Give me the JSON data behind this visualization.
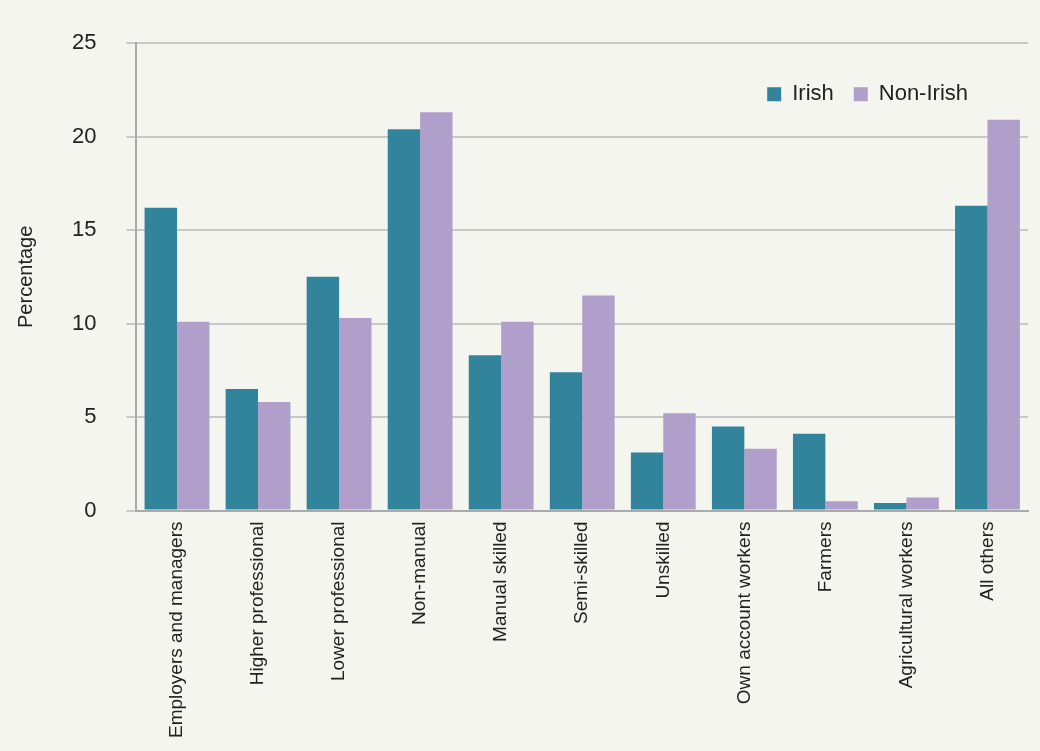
{
  "chart_data": {
    "type": "bar",
    "ylabel": "Percentage",
    "categories": [
      "Employers and managers",
      "Higher professional",
      "Lower professional",
      "Non-manual",
      "Manual skilled",
      "Semi-skilled",
      "Unskilled",
      "Own account workers",
      "Farmers",
      "Agricultural workers",
      "All others"
    ],
    "series": [
      {
        "name": "Irish",
        "color": "#31849b",
        "values": [
          16.2,
          6.5,
          12.5,
          20.4,
          8.3,
          7.4,
          3.1,
          4.5,
          4.1,
          0.4,
          16.3
        ]
      },
      {
        "name": "Non-Irish",
        "color": "#b09fca",
        "values": [
          10.1,
          5.8,
          10.3,
          21.3,
          10.1,
          11.5,
          5.2,
          3.3,
          0.5,
          0.7,
          20.9
        ]
      }
    ],
    "ylim": [
      0,
      25
    ],
    "yticks": [
      0,
      5,
      10,
      15,
      20,
      25
    ],
    "grid": "y",
    "legend": "top right"
  }
}
